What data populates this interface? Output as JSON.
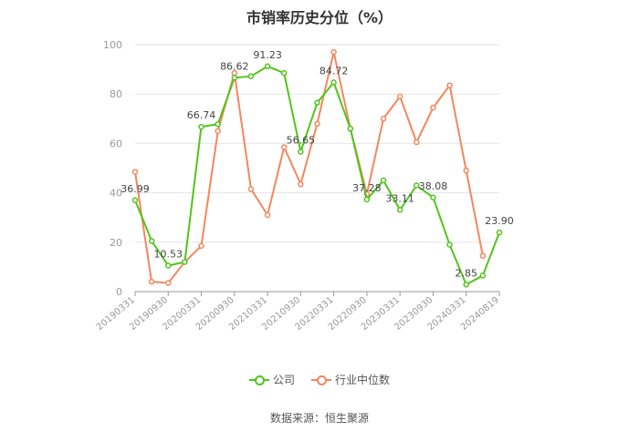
{
  "chart_data": {
    "type": "line",
    "title": "市销率历史分位（%）",
    "x": [
      "20190331",
      "20190630",
      "20190930",
      "20191231",
      "20200331",
      "20200630",
      "20200930",
      "20201231",
      "20210331",
      "20210630",
      "20210930",
      "20211231",
      "20220331",
      "20220630",
      "20220930",
      "20221231",
      "20230331",
      "20230630",
      "20230930",
      "20231231",
      "20240331",
      "20240630",
      "20240819"
    ],
    "x_tick_labels": [
      "20190331",
      "20190930",
      "20200331",
      "20200930",
      "20210331",
      "20210930",
      "20220331",
      "20220930",
      "20230331",
      "20230930",
      "20240331",
      "20240819"
    ],
    "ylim": [
      0,
      100
    ],
    "y_ticks": [
      0,
      20,
      40,
      60,
      80,
      100
    ],
    "grid": true,
    "series": [
      {
        "name": "公司",
        "color": "#52c41a",
        "values": [
          36.99,
          20.5,
          10.53,
          12.0,
          66.74,
          67.8,
          86.62,
          87.2,
          91.23,
          88.5,
          56.65,
          76.5,
          84.72,
          66.0,
          37.28,
          45.0,
          33.11,
          43.0,
          38.08,
          19.0,
          2.85,
          6.5,
          23.9
        ],
        "data_labels": [
          {
            "index": 0,
            "text": "36.99"
          },
          {
            "index": 2,
            "text": "10.53"
          },
          {
            "index": 4,
            "text": "66.74"
          },
          {
            "index": 6,
            "text": "86.62"
          },
          {
            "index": 8,
            "text": "91.23"
          },
          {
            "index": 10,
            "text": "56.65"
          },
          {
            "index": 12,
            "text": "84.72"
          },
          {
            "index": 14,
            "text": "37.28"
          },
          {
            "index": 16,
            "text": "33.11"
          },
          {
            "index": 18,
            "text": "38.08"
          },
          {
            "index": 20,
            "text": "2.85"
          },
          {
            "index": 22,
            "text": "23.90"
          }
        ]
      },
      {
        "name": "行业中位数",
        "color": "#f4875e",
        "values": [
          48.5,
          4.0,
          3.5,
          12.0,
          18.5,
          65.0,
          88.5,
          41.5,
          31.0,
          58.5,
          43.5,
          68.0,
          97.0,
          66.0,
          39.5,
          70.0,
          79.0,
          60.5,
          74.5,
          83.5,
          49.0,
          14.5,
          null
        ]
      }
    ]
  },
  "legend": {
    "company_label": "公司",
    "industry_label": "行业中位数"
  },
  "footer": {
    "source": "数据来源：恒生聚源"
  }
}
